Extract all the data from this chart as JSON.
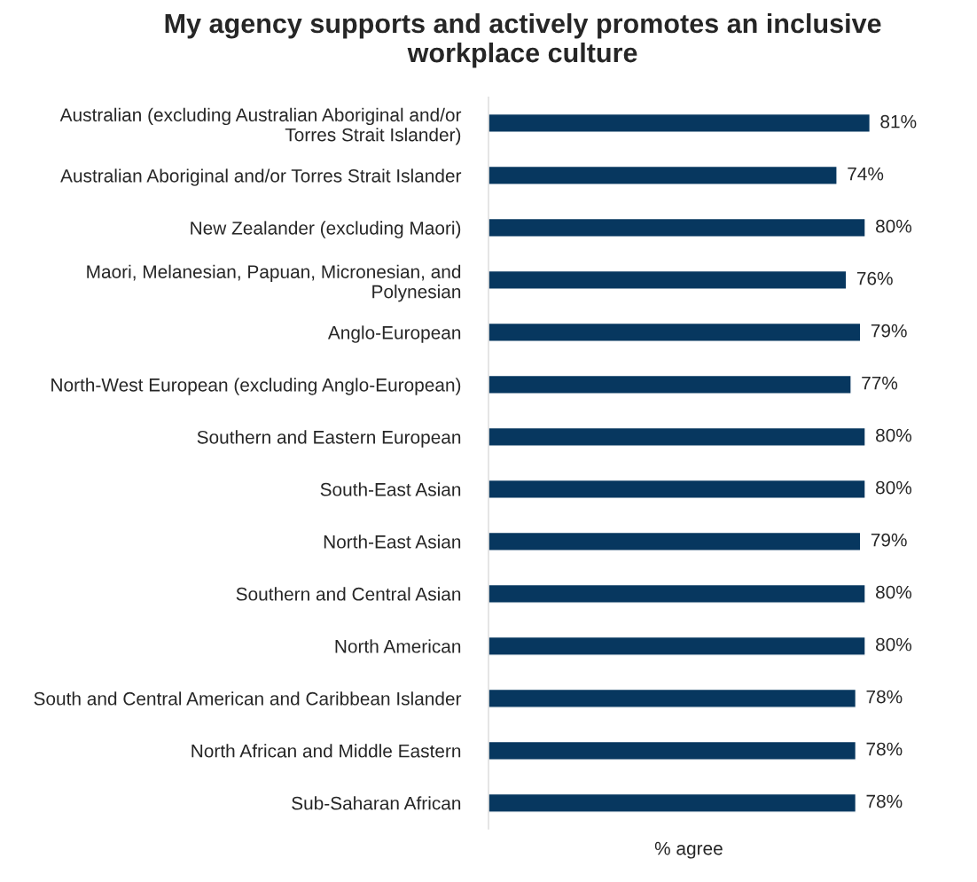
{
  "chart_data": {
    "type": "bar",
    "orientation": "horizontal",
    "title": "My agency supports and actively promotes an inclusive\nworkplace culture",
    "xlabel": "% agree",
    "categories": [
      "Australian (excluding Australian Aboriginal and/or\nTorres Strait Islander)",
      "Australian Aboriginal and/or Torres Strait Islander",
      "New Zealander (excluding Maori)",
      "Maori, Melanesian, Papuan, Micronesian, and\nPolynesian",
      "Anglo-European",
      "North-West European (excluding Anglo-European)",
      "Southern and Eastern European",
      "South-East Asian",
      "North-East Asian",
      "Southern and Central Asian",
      "North American",
      "South and Central American and Caribbean Islander",
      "North African and Middle Eastern",
      "Sub-Saharan African"
    ],
    "values": [
      81,
      74,
      80,
      76,
      79,
      77,
      80,
      80,
      79,
      80,
      80,
      78,
      78,
      78
    ],
    "value_labels": [
      "81%",
      "74%",
      "80%",
      "76%",
      "79%",
      "77%",
      "80%",
      "80%",
      "79%",
      "80%",
      "80%",
      "78%",
      "78%",
      "78%"
    ],
    "color": "#07375f",
    "tick_labels": "y",
    "grid": false,
    "legend": false
  }
}
